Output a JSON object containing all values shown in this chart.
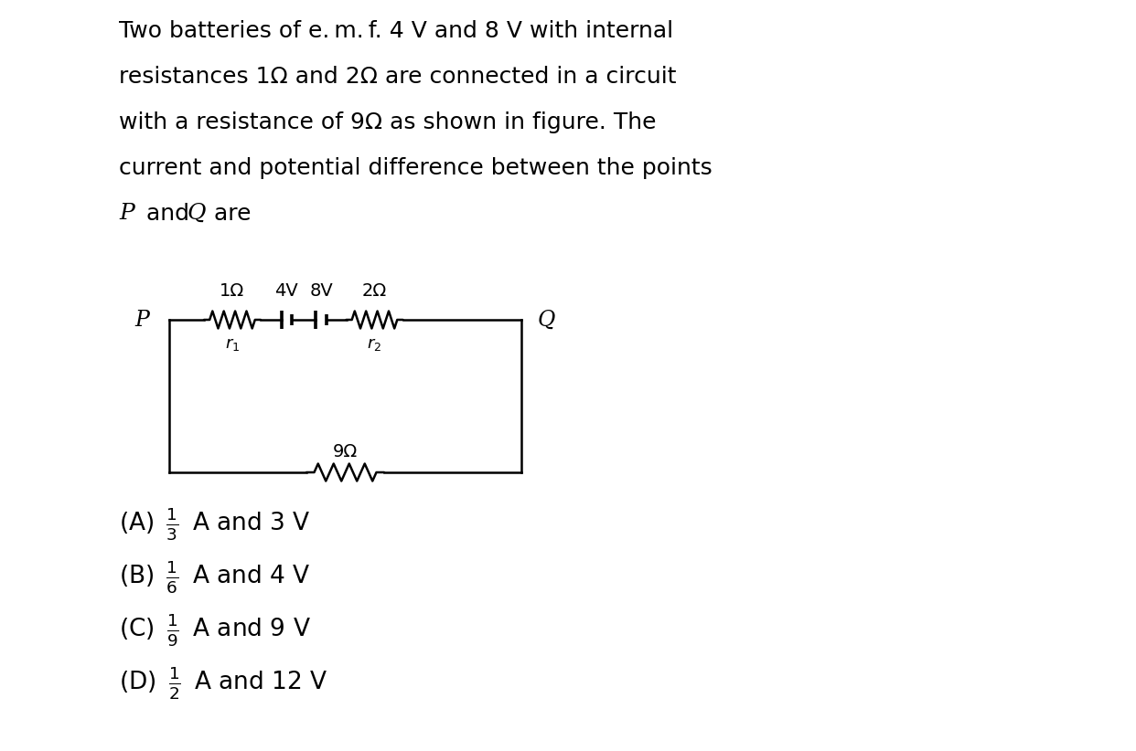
{
  "background_color": "#ffffff",
  "text_color": "#000000",
  "title_lines": [
    "Two batteries of e. m. f. 4 V and 8 V with internal",
    "resistances 1Ω and 2Ω are connected in a circuit",
    "with a resistance of 9Ω as shown in figure. The",
    "current and potential difference between the points",
    "P and Q are"
  ],
  "title_line5_italic_P": true,
  "circuit_labels_top": [
    "1Ω",
    "4V",
    "8V",
    "2Ω"
  ],
  "circuit_sub_labels": [
    "r₁",
    "r₂"
  ],
  "circuit_bottom_label": "9Ω",
  "P_label": "P",
  "Q_label": "Q",
  "options": [
    [
      "(A) ",
      "\\frac{1}{3}",
      " A and 3 V"
    ],
    [
      "(B) ",
      "\\frac{1}{6}",
      " A and 4 V"
    ],
    [
      "(C) ",
      "\\frac{1}{9}",
      " A and 9 V"
    ],
    [
      "(D) ",
      "\\frac{1}{2}",
      " A and 12 V"
    ]
  ],
  "fig_width": 12.42,
  "fig_height": 8.22,
  "dpi": 100
}
